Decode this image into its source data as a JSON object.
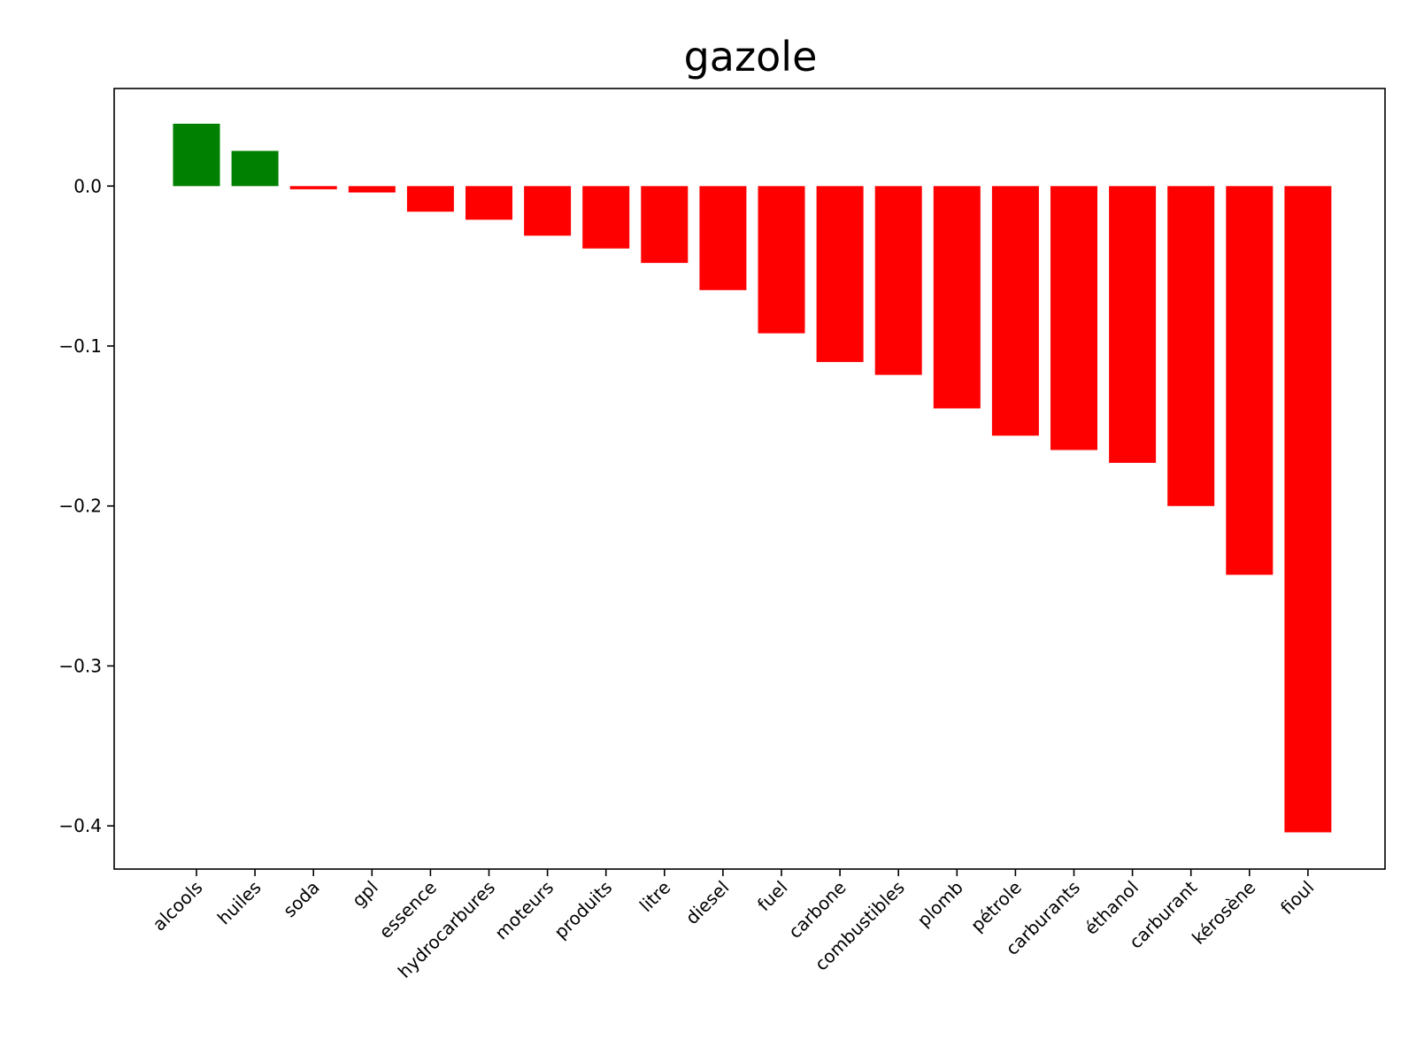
{
  "chart_data": {
    "type": "bar",
    "title": "gazole",
    "xlabel": "",
    "ylabel": "",
    "categories": [
      "alcools",
      "huiles",
      "soda",
      "gpl",
      "essence",
      "hydrocarbures",
      "moteurs",
      "produits",
      "litre",
      "diesel",
      "fuel",
      "carbone",
      "combustibles",
      "plomb",
      "pétrole",
      "carburants",
      "éthanol",
      "carburant",
      "kérosène",
      "fioul"
    ],
    "values": [
      0.039,
      0.022,
      -0.002,
      -0.004,
      -0.016,
      -0.021,
      -0.031,
      -0.039,
      -0.048,
      -0.065,
      -0.092,
      -0.11,
      -0.118,
      -0.139,
      -0.156,
      -0.165,
      -0.173,
      -0.2,
      -0.243,
      -0.404
    ],
    "colors": {
      "positive": "#008000",
      "negative": "#ff0000"
    },
    "ylim": [
      -0.427,
      0.061
    ],
    "yticks": [
      0.0,
      -0.1,
      -0.2,
      -0.3,
      -0.4
    ],
    "ytick_labels": [
      "0.0",
      "−0.1",
      "−0.2",
      "−0.3",
      "−0.4"
    ],
    "grid": false,
    "legend": "none"
  }
}
